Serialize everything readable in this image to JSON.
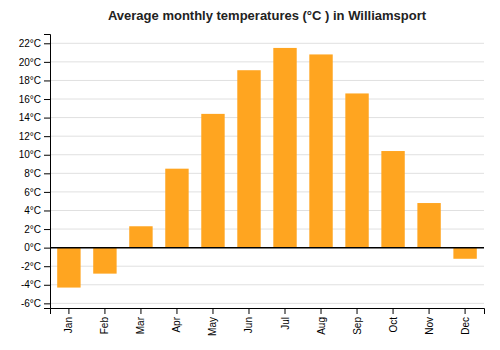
{
  "chart_data": {
    "type": "bar",
    "title": "Average monthly temperatures (°C ) in Williamsport",
    "categories": [
      "Jan",
      "Feb",
      "Mar",
      "Apr",
      "May",
      "Jun",
      "Jul",
      "Aug",
      "Sep",
      "Oct",
      "Nov",
      "Dec"
    ],
    "values": [
      -4.3,
      -2.8,
      2.3,
      8.5,
      14.4,
      19.1,
      21.5,
      20.8,
      16.6,
      10.4,
      4.8,
      -1.2
    ],
    "color": "#FFA520",
    "ylim": [
      -6.5,
      23
    ],
    "yticks": [
      {
        "value": -6,
        "label": "-6°C"
      },
      {
        "value": -4,
        "label": "-4°C"
      },
      {
        "value": -2,
        "label": "-2°C"
      },
      {
        "value": 0,
        "label": "0°C"
      },
      {
        "value": 2,
        "label": "2°C"
      },
      {
        "value": 4,
        "label": "4°C"
      },
      {
        "value": 6,
        "label": "6°C"
      },
      {
        "value": 8,
        "label": "8°C"
      },
      {
        "value": 10,
        "label": "10°C"
      },
      {
        "value": 12,
        "label": "12°C"
      },
      {
        "value": 14,
        "label": "14°C"
      },
      {
        "value": 16,
        "label": "16°C"
      },
      {
        "value": 18,
        "label": "18°C"
      },
      {
        "value": 20,
        "label": "20°C"
      },
      {
        "value": 22,
        "label": "22°C"
      }
    ],
    "grid": true
  }
}
